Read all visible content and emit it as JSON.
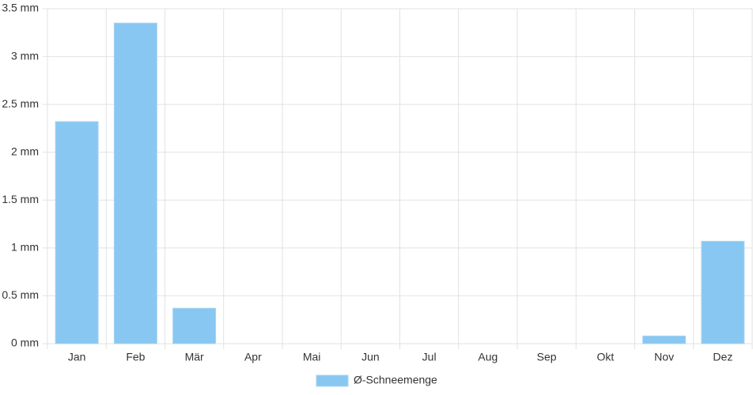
{
  "chart_data": {
    "type": "bar",
    "categories": [
      "Jan",
      "Feb",
      "Mär",
      "Apr",
      "Mai",
      "Jun",
      "Jul",
      "Aug",
      "Sep",
      "Okt",
      "Nov",
      "Dez"
    ],
    "series": [
      {
        "name": "Ø-Schneemenge",
        "color": "#88c7f1",
        "values": [
          2.32,
          3.35,
          0.37,
          0,
          0,
          0,
          0,
          0,
          0,
          0,
          0.08,
          1.07
        ]
      }
    ],
    "ylim": [
      0,
      3.5
    ],
    "yticks": [
      {
        "value": 0,
        "label": "0 mm"
      },
      {
        "value": 0.5,
        "label": "0.5 mm"
      },
      {
        "value": 1,
        "label": "1 mm"
      },
      {
        "value": 1.5,
        "label": "1.5 mm"
      },
      {
        "value": 2,
        "label": "2 mm"
      },
      {
        "value": 2.5,
        "label": "2.5 mm"
      },
      {
        "value": 3,
        "label": "3 mm"
      },
      {
        "value": 3.5,
        "label": "3.5 mm"
      }
    ],
    "grid": true,
    "legend": "bottom"
  }
}
